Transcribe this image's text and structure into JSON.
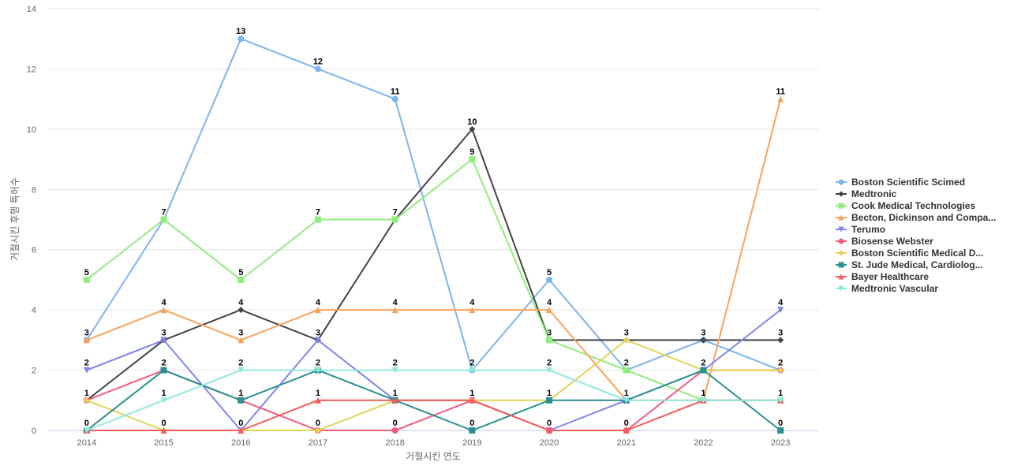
{
  "chart_data": {
    "type": "line",
    "title": "",
    "xlabel": "거절시킨 연도",
    "ylabel": "거절시킨 후행 특허수",
    "ylim": [
      0,
      14
    ],
    "yticks": [
      0,
      2,
      4,
      6,
      8,
      10,
      12,
      14
    ],
    "x": [
      "2014",
      "2015",
      "2016",
      "2017",
      "2018",
      "2019",
      "2020",
      "2021",
      "2022",
      "2023"
    ],
    "legend_position": "right",
    "series": [
      {
        "name": "Boston Scientific Scimed",
        "color": "#7cb5ec",
        "marker": "circle",
        "values": [
          3,
          7,
          13,
          12,
          11,
          2,
          5,
          2,
          3,
          2
        ]
      },
      {
        "name": "Medtronic",
        "color": "#434348",
        "marker": "diamond",
        "values": [
          1,
          3,
          4,
          3,
          7,
          10,
          3,
          3,
          3,
          3
        ]
      },
      {
        "name": "Cook Medical Technologies",
        "color": "#90ed7d",
        "marker": "square",
        "values": [
          5,
          7,
          5,
          7,
          7,
          9,
          3,
          2,
          1,
          1
        ]
      },
      {
        "name": "Becton, Dickinson and Compa...",
        "color": "#f7a35c",
        "marker": "triangle",
        "values": [
          3,
          4,
          3,
          4,
          4,
          4,
          4,
          1,
          1,
          11
        ]
      },
      {
        "name": "Terumo",
        "color": "#8085e9",
        "marker": "triangle-down",
        "values": [
          2,
          3,
          0,
          3,
          1,
          1,
          0,
          1,
          2,
          4
        ]
      },
      {
        "name": "Biosense Webster",
        "color": "#f15c80",
        "marker": "circle",
        "values": [
          1,
          2,
          1,
          0,
          0,
          1,
          0,
          0,
          2,
          2
        ]
      },
      {
        "name": "Boston Scientific Medical D...",
        "color": "#e4d354",
        "marker": "diamond",
        "values": [
          1,
          0,
          0,
          0,
          1,
          1,
          1,
          3,
          2,
          2
        ]
      },
      {
        "name": "St. Jude Medical, Cardiolog...",
        "color": "#2b908f",
        "marker": "square",
        "values": [
          0,
          2,
          1,
          2,
          1,
          0,
          1,
          1,
          2,
          0
        ]
      },
      {
        "name": "Bayer Healthcare",
        "color": "#f45b5b",
        "marker": "triangle",
        "values": [
          0,
          0,
          0,
          1,
          1,
          1,
          0,
          0,
          1,
          1
        ]
      },
      {
        "name": "Medtronic Vascular",
        "color": "#91e8e1",
        "marker": "triangle-down",
        "values": [
          0,
          1,
          2,
          2,
          2,
          2,
          2,
          1,
          1,
          1
        ]
      }
    ],
    "data_labels": [
      {
        "x": "2014",
        "labels": [
          "5",
          "3",
          "2",
          "1",
          "0"
        ]
      },
      {
        "x": "2015",
        "labels": [
          "7",
          "4",
          "3",
          "2",
          "1",
          "0"
        ]
      },
      {
        "x": "2016",
        "labels": [
          "13",
          "5",
          "4",
          "3",
          "2",
          "1",
          "0"
        ]
      },
      {
        "x": "2017",
        "labels": [
          "12",
          "7",
          "4",
          "3",
          "2",
          "1",
          "0"
        ]
      },
      {
        "x": "2018",
        "labels": [
          "11",
          "7",
          "4",
          "2",
          "1",
          "0"
        ]
      },
      {
        "x": "2019",
        "labels": [
          "10",
          "9",
          "4",
          "2",
          "1",
          "0"
        ]
      },
      {
        "x": "2020",
        "labels": [
          "5",
          "4",
          "3",
          "2",
          "1",
          "0"
        ]
      },
      {
        "x": "2021",
        "labels": [
          "3",
          "2",
          "1",
          "0"
        ]
      },
      {
        "x": "2022",
        "labels": [
          "3",
          "2",
          "1"
        ]
      },
      {
        "x": "2023",
        "labels": [
          "11",
          "4",
          "3",
          "2",
          "1",
          "0"
        ]
      }
    ]
  }
}
